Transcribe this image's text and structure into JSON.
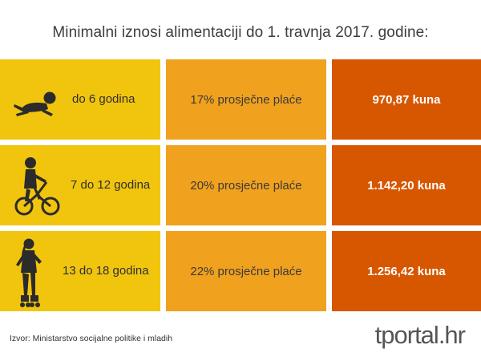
{
  "title": "Minimalni iznosi alimentaciji do 1. travnja 2017. godine:",
  "rows": [
    {
      "age": "do 6 godina",
      "percent": "17% prosječne plaće",
      "amount": "970,87 kuna",
      "icon": "baby-crawling-icon"
    },
    {
      "age": "7 do 12 godina",
      "percent": "20% prosječne plaće",
      "amount": "1.142,20 kuna",
      "icon": "child-bicycle-icon"
    },
    {
      "age": "13 do 18 godina",
      "percent": "22% prosječne plaće",
      "amount": "1.256,42 kuna",
      "icon": "teen-rollerskates-icon"
    }
  ],
  "source": "Izvor: Ministarstvo socijalne politike i mladih",
  "logo": {
    "text": "tportal.hr"
  },
  "colors": {
    "age_column": "#f1c50e",
    "percent_column": "#f0a11e",
    "amount_column": "#d75600"
  }
}
